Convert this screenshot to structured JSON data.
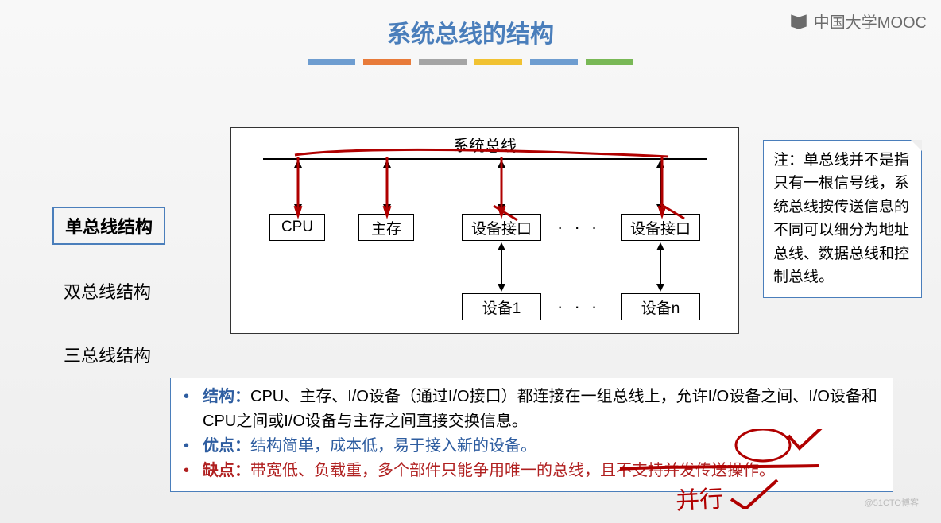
{
  "title": {
    "text": "系统总线的结构",
    "color": "#4a7ebb",
    "fontsize": 30
  },
  "brand": "中国大学MOOC",
  "watermark": "@51CTO博客",
  "color_bars": [
    "#6e9dd0",
    "#e87b3a",
    "#a5a5a5",
    "#f1c232",
    "#6e9dd0",
    "#79b856"
  ],
  "sidebar": {
    "items": [
      {
        "label": "单总线结构",
        "selected": true
      },
      {
        "label": "双总线结构",
        "selected": false
      },
      {
        "label": "三总线结构",
        "selected": false
      }
    ],
    "selected_border_color": "#4a7ebb"
  },
  "diagram": {
    "type": "flowchart",
    "bus_label": "系统总线",
    "border_color": "#333333",
    "nodes": {
      "cpu": "CPU",
      "mem": "主存",
      "if1": "设备接口",
      "if2": "设备接口",
      "dev1": "设备1",
      "devn": "设备n"
    },
    "ellipsis": "· · ·",
    "arrow_color": "#000000",
    "annotation_color": "#b00000"
  },
  "note": {
    "label": "注：",
    "text": "单总线并不是指只有一根信号线，系统总线按传送信息的不同可以细分为地址总线、数据总线和控制总线。",
    "border_color": "#4a7ebb"
  },
  "bottom": {
    "border_color": "#4a7ebb",
    "rows": [
      {
        "dot_color": "#2e5da0",
        "label": "结构：",
        "label_color": "#2e5da0",
        "text": "CPU、主存、I/O设备（通过I/O接口）都连接在一组总线上，允许I/O设备之间、I/O设备和CPU之间或I/O设备与主存之间直接交换信息。",
        "text_color": "#000000"
      },
      {
        "dot_color": "#2e5da0",
        "label": "优点：",
        "label_color": "#2e5da0",
        "text": "结构简单，成本低，易于接入新的设备。",
        "text_color": "#2e5da0"
      },
      {
        "dot_color": "#b02020",
        "label": "缺点：",
        "label_color": "#b02020",
        "text": "带宽低、负载重，多个部件只能争用唯一的总线，且不支持并发传送操作。",
        "text_color": "#b02020"
      }
    ]
  },
  "handwrite": {
    "text": "并行",
    "check": "✓"
  }
}
